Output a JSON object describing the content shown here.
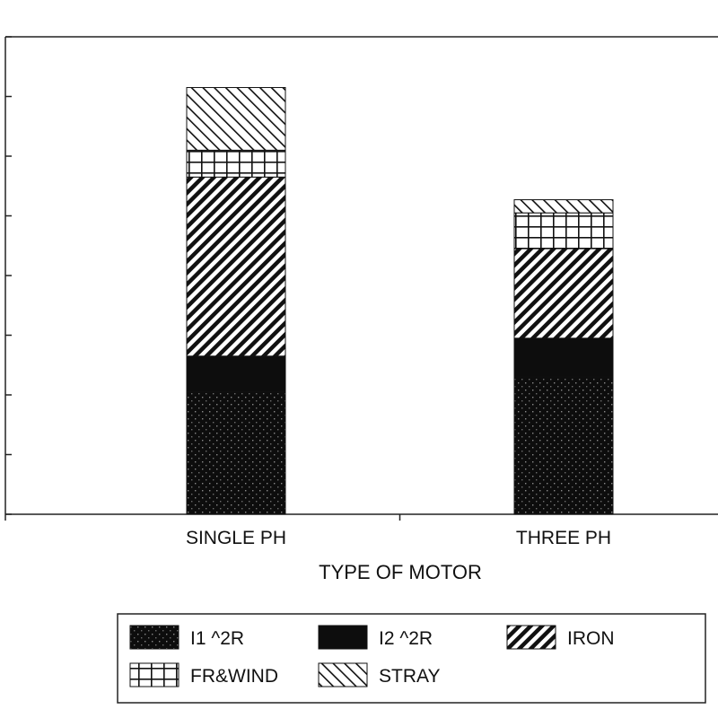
{
  "chart_data": {
    "type": "bar",
    "stacked": true,
    "title": "",
    "xlabel": "TYPE OF MOTOR",
    "ylabel": "",
    "categories": [
      "SINGLE PH",
      "THREE PH"
    ],
    "ylim": [
      0,
      8
    ],
    "y_ticks": [
      0,
      1,
      2,
      3,
      4,
      5,
      6,
      7,
      8
    ],
    "y_tick_labels_visible": false,
    "grid": false,
    "legend_position": "bottom",
    "series": [
      {
        "name": "I1 ^2R",
        "values": [
          2.05,
          2.3
        ],
        "pattern": "dots"
      },
      {
        "name": "I2 ^2R",
        "values": [
          0.6,
          0.65
        ],
        "pattern": "solid"
      },
      {
        "name": "IRON",
        "values": [
          3.0,
          1.5
        ],
        "pattern": "back-hatch"
      },
      {
        "name": "FR&WIND",
        "values": [
          0.45,
          0.6
        ],
        "pattern": "grid"
      },
      {
        "name": "STRAY",
        "values": [
          1.05,
          0.22
        ],
        "pattern": "forward-hatch"
      }
    ]
  }
}
